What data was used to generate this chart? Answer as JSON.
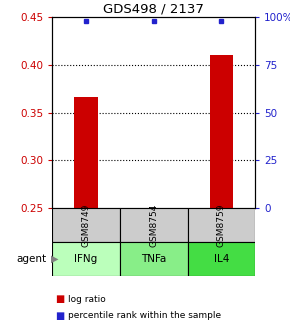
{
  "title": "GDS498 / 2137",
  "samples": [
    "GSM8749",
    "GSM8754",
    "GSM8759"
  ],
  "agents": [
    "IFNg",
    "TNFa",
    "IL4"
  ],
  "log_ratio_values": [
    0.366,
    0.249,
    0.41
  ],
  "log_ratio_base": 0.25,
  "left_ylim": [
    0.25,
    0.45
  ],
  "left_yticks": [
    0.25,
    0.3,
    0.35,
    0.4,
    0.45
  ],
  "right_yticks": [
    0,
    25,
    50,
    75,
    100
  ],
  "right_ylim": [
    0,
    100
  ],
  "bar_color": "#cc0000",
  "point_color": "#2222cc",
  "agent_colors": [
    "#bbffbb",
    "#88ee88",
    "#44dd44"
  ],
  "sample_bg_color": "#cccccc",
  "left_tick_color": "#cc0000",
  "right_tick_color": "#2222cc",
  "bar_width": 0.35,
  "legend_log_label": "log ratio",
  "legend_pct_label": "percentile rank within the sample",
  "grid_yticks": [
    0.3,
    0.35,
    0.4
  ]
}
